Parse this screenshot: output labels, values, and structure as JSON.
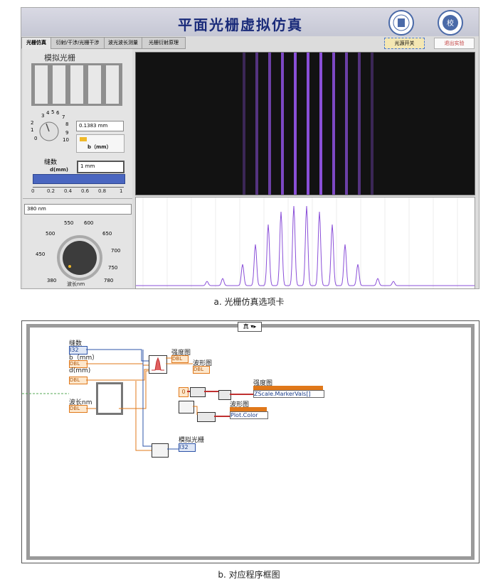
{
  "front_panel": {
    "title": "平面光栅虚拟仿真",
    "tabs": [
      "光栅仿真",
      "衍射/干涉/光栅干涉",
      "波光波长测量",
      "光栅衍射原理"
    ],
    "light_button": "光源开关",
    "exit_button": "退出实验",
    "simulated_grating_label": "模拟光栅",
    "b_value": "0.1383 mm",
    "b_label": "b（mm）",
    "slit_count_label": "缝数",
    "d_label": "d(mm)",
    "d_value": "1 mm",
    "knob_ticks": [
      "3",
      "4",
      "5",
      "6",
      "7",
      "2",
      "8",
      "1",
      "9",
      "0",
      "10"
    ],
    "slider_ticks": [
      "0",
      "0.2",
      "0.4",
      "0.6",
      "0.8",
      "1"
    ],
    "wavelength_value": "380 nm",
    "wavelength_ticks": [
      "550",
      "600",
      "650",
      "500",
      "700",
      "450",
      "750",
      "380",
      "780"
    ],
    "wavelength_label": "波长nm",
    "accent_color": "#8a4fd8",
    "bar_color": "#4a66c0"
  },
  "caption_a": "a. 光栅仿真选项卡",
  "diagram": {
    "case_selector": "真",
    "slit_count": "缝数",
    "b_label": "b（mm）",
    "d_label": "d(mm)",
    "wavelength_label": "波长nm",
    "intensity_label": "强度图",
    "waveform_label": "波形图",
    "intensity_prop_label": "强度图",
    "intensity_prop": "ZScale.MarkerVals[]",
    "waveform_prop_label": "波形图",
    "waveform_prop": "Plot.Color",
    "simulated_grating": "模拟光栅",
    "zero_const": "0",
    "i32_tag": "I32",
    "dbl_tag": "DBL"
  },
  "caption_b": "b. 对应程序框图"
}
